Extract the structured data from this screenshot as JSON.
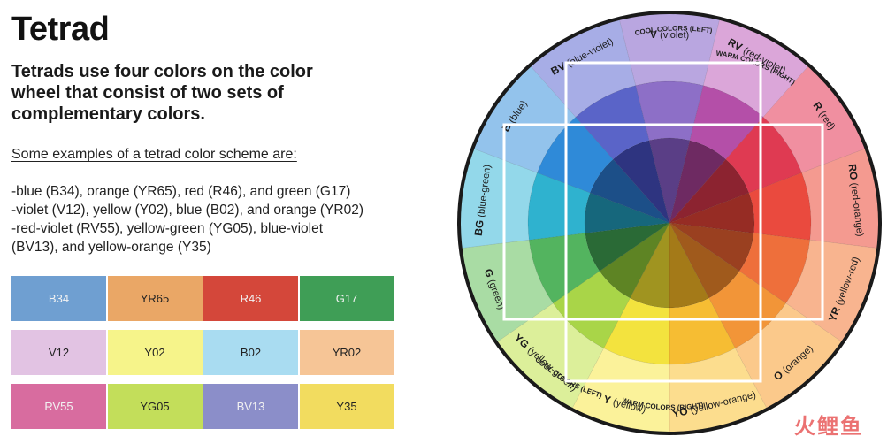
{
  "title": "Tetrad",
  "subtitle": "Tetrads use four colors on the color wheel that consist of two sets of complementary colors.",
  "examples_heading": "Some examples of a tetrad color scheme are:",
  "examples": [
    "-blue (B34), orange (YR65), red (R46), and green (G17)",
    "-violet (V12), yellow (Y02), blue (B02), and orange (YR02)",
    "-red-violet (RV55), yellow-green (YG05), blue-violet",
    "(BV13), and yellow-orange (Y35)"
  ],
  "swatch_rows": [
    [
      {
        "code": "B34",
        "color": "#6f9fd1",
        "light": true
      },
      {
        "code": "YR65",
        "color": "#eaa766",
        "light": false
      },
      {
        "code": "R46",
        "color": "#d4473a",
        "light": true
      },
      {
        "code": "G17",
        "color": "#3f9e56",
        "light": true
      }
    ],
    [
      {
        "code": "V12",
        "color": "#e2c3e3",
        "light": false
      },
      {
        "code": "Y02",
        "color": "#f6f48a",
        "light": false
      },
      {
        "code": "B02",
        "color": "#a9dcf1",
        "light": false
      },
      {
        "code": "YR02",
        "color": "#f6c596",
        "light": false
      }
    ],
    [
      {
        "code": "RV55",
        "color": "#d86c9f",
        "light": true
      },
      {
        "code": "YG05",
        "color": "#c3de5a",
        "light": false
      },
      {
        "code": "BV13",
        "color": "#8b8ec9",
        "light": true
      },
      {
        "code": "Y35",
        "color": "#f2dc5f",
        "light": false
      }
    ]
  ],
  "wheel": {
    "segments": [
      {
        "code": "V",
        "name": "(violet)",
        "outer": "#b9a6e0",
        "mid": "#8d6fc7",
        "inner": "#5a3e86"
      },
      {
        "code": "RV",
        "name": "(red-violet)",
        "outer": "#dba6d9",
        "mid": "#b44fa8",
        "inner": "#6e2a62"
      },
      {
        "code": "R",
        "name": "(red)",
        "outer": "#f08fa0",
        "mid": "#df3a52",
        "inner": "#8c2330"
      },
      {
        "code": "RO",
        "name": "(red-orange)",
        "outer": "#f49a90",
        "mid": "#ea4a3e",
        "inner": "#962c24"
      },
      {
        "code": "YR",
        "name": "(yellow-red)",
        "outer": "#f8b48f",
        "mid": "#ee6f3b",
        "inner": "#9a4020"
      },
      {
        "code": "O",
        "name": "(orange)",
        "outer": "#fbc98b",
        "mid": "#f29538",
        "inner": "#a05a1c"
      },
      {
        "code": "YO",
        "name": "(yellow-orange)",
        "outer": "#fcdd8e",
        "mid": "#f6bd33",
        "inner": "#a47a18"
      },
      {
        "code": "Y",
        "name": "(yellow)",
        "outer": "#fbf29a",
        "mid": "#f3e33e",
        "inner": "#a09420"
      },
      {
        "code": "YG",
        "name": "(yellow-green)",
        "outer": "#dcef9a",
        "mid": "#a9d548",
        "inner": "#5e8424"
      },
      {
        "code": "G",
        "name": "(green)",
        "outer": "#a9dca4",
        "mid": "#53b45f",
        "inner": "#2a6a36"
      },
      {
        "code": "BG",
        "name": "(blue-green)",
        "outer": "#93d8ea",
        "mid": "#2fb2cf",
        "inner": "#16677c"
      },
      {
        "code": "B",
        "name": "(blue)",
        "outer": "#93c3ec",
        "mid": "#2f8ad8",
        "inner": "#1c4f88"
      },
      {
        "code": "BV",
        "name": "(blue-violet)",
        "outer": "#a7ade6",
        "mid": "#5a64c8",
        "inner": "#2e3480"
      }
    ],
    "cool_label": "COOL COLORS (LEFT)",
    "warm_label_top": "WARM COLORS (RIGHT)",
    "warm_label_bottom": "WARM COLORS (RIGHT)",
    "cool_label_bottom": "COOL COLORS (LEFT)",
    "rim_color": "#1a1a1a"
  },
  "watermark": "火鲤鱼"
}
